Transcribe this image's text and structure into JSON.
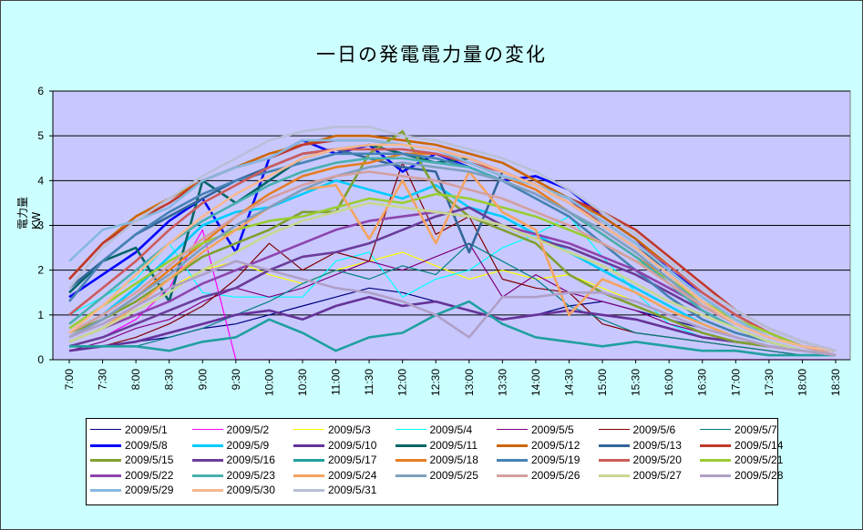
{
  "chart_data": {
    "type": "line",
    "title": "一日の発電電力量の変化",
    "ylabel": "電力量KW",
    "xlabel": "",
    "ylim": [
      0,
      6
    ],
    "yticks": [
      0,
      1,
      2,
      3,
      4,
      5,
      6
    ],
    "grid": true,
    "legend_position": "bottom",
    "categories": [
      "7:00",
      "7:30",
      "8:00",
      "8:30",
      "9:00",
      "9:30",
      "10:00",
      "10:30",
      "11:00",
      "11:30",
      "12:00",
      "12:30",
      "13:00",
      "13:30",
      "14:00",
      "14:30",
      "15:00",
      "15:30",
      "16:00",
      "16:30",
      "17:00",
      "17:30",
      "18:00",
      "18:30"
    ],
    "series": [
      {
        "name": "2009/5/1",
        "color": "#000080",
        "values": [
          0.3,
          0.3,
          0.4,
          0.5,
          0.7,
          0.8,
          1.0,
          1.2,
          1.4,
          1.6,
          1.5,
          1.3,
          1.1,
          0.9,
          1.0,
          1.2,
          1.3,
          1.1,
          0.9,
          0.7,
          0.5,
          0.3,
          0.2,
          0.1
        ]
      },
      {
        "name": "2009/5/2",
        "color": "#ff00ff",
        "values": [
          0.3,
          0.5,
          0.9,
          1.6,
          2.9,
          0,
          0,
          0,
          0,
          0,
          0,
          0,
          0,
          0,
          0,
          0,
          0,
          0,
          0,
          0,
          0,
          0,
          0,
          0
        ]
      },
      {
        "name": "2009/5/3",
        "color": "#ffff00",
        "values": [
          0.5,
          0.8,
          1.2,
          1.6,
          2.0,
          2.2,
          1.9,
          1.7,
          2.0,
          2.2,
          2.4,
          2.1,
          1.8,
          2.0,
          1.8,
          1.9,
          1.6,
          1.3,
          1.0,
          0.7,
          0.5,
          0.3,
          0.2,
          0.1
        ]
      },
      {
        "name": "2009/5/4",
        "color": "#00ffff",
        "values": [
          1.0,
          1.4,
          1.8,
          2.6,
          1.5,
          1.4,
          1.4,
          1.4,
          2.2,
          2.4,
          1.4,
          1.8,
          2.0,
          2.5,
          2.8,
          3.2,
          2.3,
          1.5,
          0.8,
          0.5,
          0.4,
          0.3,
          0.2,
          0.1
        ]
      },
      {
        "name": "2009/5/5",
        "color": "#800080",
        "values": [
          0.2,
          0.4,
          0.7,
          0.9,
          1.3,
          1.6,
          1.4,
          1.6,
          1.9,
          2.2,
          2.0,
          2.3,
          2.6,
          1.4,
          1.9,
          1.5,
          1.3,
          1.1,
          0.8,
          0.6,
          0.4,
          0.3,
          0.2,
          0.1
        ]
      },
      {
        "name": "2009/5/6",
        "color": "#800000",
        "values": [
          0.3,
          0.3,
          0.5,
          0.8,
          1.2,
          1.8,
          2.6,
          2.0,
          2.4,
          2.2,
          4.4,
          2.8,
          3.2,
          1.8,
          1.6,
          1.5,
          0.8,
          0.6,
          0.5,
          0.4,
          0.3,
          0.2,
          0.1,
          0.1
        ]
      },
      {
        "name": "2009/5/7",
        "color": "#008080",
        "values": [
          0.2,
          0.3,
          0.3,
          0.5,
          0.7,
          1.0,
          1.3,
          1.7,
          2.0,
          1.8,
          2.1,
          1.9,
          2.6,
          2.2,
          1.8,
          1.2,
          0.9,
          0.6,
          0.5,
          0.4,
          0.3,
          0.2,
          0.1,
          0.1
        ]
      },
      {
        "name": "2009/5/8",
        "color": "#0000ff",
        "values": [
          1.4,
          1.9,
          2.4,
          3.1,
          3.6,
          2.4,
          4.5,
          4.9,
          4.6,
          4.8,
          4.2,
          4.6,
          4.3,
          4.0,
          4.1,
          3.8,
          3.2,
          2.7,
          2.0,
          1.5,
          1.0,
          0.6,
          0.3,
          0.2
        ]
      },
      {
        "name": "2009/5/9",
        "color": "#00ccff",
        "values": [
          0.6,
          1.0,
          1.6,
          2.3,
          3.0,
          3.3,
          3.4,
          3.7,
          4.0,
          3.8,
          3.6,
          3.9,
          3.4,
          3.2,
          2.8,
          2.4,
          2.0,
          1.6,
          1.2,
          0.8,
          0.5,
          0.3,
          0.2,
          0.1
        ]
      },
      {
        "name": "2009/5/10",
        "color": "#663399",
        "values": [
          0.2,
          0.3,
          0.4,
          0.6,
          0.8,
          1.0,
          1.1,
          0.9,
          1.2,
          1.4,
          1.2,
          1.3,
          1.1,
          0.9,
          1.0,
          1.1,
          1.0,
          0.9,
          0.7,
          0.5,
          0.4,
          0.3,
          0.2,
          0.1
        ]
      },
      {
        "name": "2009/5/11",
        "color": "#006666",
        "values": [
          1.5,
          2.2,
          2.5,
          1.3,
          4.0,
          3.5,
          4.0,
          4.5,
          4.7,
          4.8,
          4.6,
          4.4,
          4.5,
          4.2,
          3.9,
          3.5,
          3.0,
          2.5,
          1.9,
          1.3,
          0.8,
          0.5,
          0.3,
          0.2
        ]
      },
      {
        "name": "2009/5/12",
        "color": "#cc6600",
        "values": [
          1.8,
          2.6,
          3.2,
          3.6,
          4.0,
          4.3,
          4.6,
          4.8,
          5.0,
          5.0,
          4.9,
          4.8,
          4.6,
          4.4,
          4.0,
          3.6,
          3.2,
          2.7,
          2.1,
          1.5,
          1.0,
          0.6,
          0.3,
          0.2
        ]
      },
      {
        "name": "2009/5/13",
        "color": "#336699",
        "values": [
          1.6,
          2.2,
          2.8,
          3.2,
          3.6,
          4.0,
          4.3,
          4.6,
          4.7,
          4.5,
          4.3,
          4.2,
          2.4,
          4.2,
          3.9,
          3.6,
          3.0,
          2.5,
          2.0,
          1.4,
          0.9,
          0.5,
          0.3,
          0.2
        ]
      },
      {
        "name": "2009/5/14",
        "color": "#c0392b",
        "values": [
          1.8,
          2.6,
          3.1,
          3.5,
          4.0,
          4.3,
          4.5,
          4.8,
          4.9,
          4.9,
          4.8,
          4.7,
          4.5,
          4.2,
          3.9,
          3.6,
          3.3,
          2.9,
          2.3,
          1.7,
          1.1,
          0.7,
          0.4,
          0.2
        ]
      },
      {
        "name": "2009/5/15",
        "color": "#80a030",
        "values": [
          0.6,
          0.9,
          1.3,
          1.8,
          2.3,
          2.6,
          2.9,
          3.3,
          3.3,
          4.6,
          5.1,
          3.8,
          3.2,
          2.9,
          2.6,
          1.9,
          1.5,
          1.2,
          0.9,
          0.6,
          0.4,
          0.3,
          0.2,
          0.1
        ]
      },
      {
        "name": "2009/5/16",
        "color": "#6a3d9a",
        "values": [
          0.3,
          0.5,
          0.8,
          1.1,
          1.4,
          1.6,
          2.0,
          2.3,
          2.4,
          2.6,
          2.9,
          3.2,
          3.4,
          3.0,
          2.7,
          2.5,
          2.2,
          1.9,
          1.5,
          1.1,
          0.7,
          0.4,
          0.2,
          0.1
        ]
      },
      {
        "name": "2009/5/17",
        "color": "#20a0a0",
        "values": [
          0.3,
          0.3,
          0.3,
          0.2,
          0.4,
          0.5,
          0.9,
          0.6,
          0.2,
          0.5,
          0.6,
          1.0,
          1.3,
          0.8,
          0.5,
          0.4,
          0.3,
          0.4,
          0.3,
          0.2,
          0.2,
          0.1,
          0.1,
          0.1
        ]
      },
      {
        "name": "2009/5/18",
        "color": "#e67e22",
        "values": [
          0.5,
          0.9,
          1.4,
          2.0,
          2.6,
          3.2,
          3.7,
          4.1,
          4.3,
          4.4,
          4.6,
          4.6,
          4.4,
          4.1,
          3.8,
          3.3,
          2.8,
          2.3,
          1.8,
          1.2,
          0.8,
          0.5,
          0.3,
          0.2
        ]
      },
      {
        "name": "2009/5/19",
        "color": "#4682b4",
        "values": [
          1.3,
          2.2,
          2.8,
          3.3,
          3.7,
          4.0,
          4.2,
          4.4,
          4.6,
          4.6,
          4.6,
          4.5,
          4.3,
          4.0,
          3.6,
          3.2,
          2.6,
          2.0,
          1.4,
          0.9,
          0.6,
          0.4,
          0.2,
          0.1
        ]
      },
      {
        "name": "2009/5/20",
        "color": "#cd5c5c",
        "values": [
          1.0,
          1.6,
          2.2,
          2.9,
          3.5,
          3.9,
          4.3,
          4.6,
          4.7,
          4.7,
          4.7,
          4.6,
          4.4,
          4.2,
          3.9,
          3.5,
          3.1,
          2.6,
          2.1,
          1.5,
          1.0,
          0.6,
          0.3,
          0.2
        ]
      },
      {
        "name": "2009/5/21",
        "color": "#9acd32",
        "values": [
          0.7,
          1.2,
          1.7,
          2.2,
          2.6,
          2.9,
          3.1,
          3.2,
          3.4,
          3.6,
          3.5,
          3.7,
          3.6,
          3.4,
          3.2,
          2.9,
          2.6,
          2.2,
          1.8,
          1.3,
          0.9,
          0.6,
          0.3,
          0.1
        ]
      },
      {
        "name": "2009/5/22",
        "color": "#8e44ad",
        "values": [
          0.4,
          0.7,
          1.0,
          1.3,
          1.7,
          2.0,
          2.3,
          2.6,
          2.9,
          3.1,
          3.2,
          3.3,
          3.2,
          3.0,
          2.8,
          2.6,
          2.3,
          2.0,
          1.6,
          1.2,
          0.8,
          0.5,
          0.3,
          0.1
        ]
      },
      {
        "name": "2009/5/23",
        "color": "#48b0b0",
        "values": [
          0.8,
          1.4,
          2.0,
          2.6,
          3.1,
          3.5,
          3.9,
          4.2,
          4.4,
          4.5,
          4.5,
          4.4,
          4.3,
          4.0,
          3.7,
          3.3,
          2.8,
          2.3,
          1.7,
          1.1,
          0.7,
          0.4,
          0.2,
          0.1
        ]
      },
      {
        "name": "2009/5/24",
        "color": "#f4a460",
        "values": [
          0.4,
          0.7,
          1.2,
          1.8,
          2.4,
          2.9,
          3.4,
          3.8,
          3.9,
          2.7,
          4.0,
          2.6,
          4.2,
          3.3,
          2.9,
          1.0,
          1.8,
          1.5,
          1.1,
          0.8,
          0.5,
          0.3,
          0.2,
          0.1
        ]
      },
      {
        "name": "2009/5/25",
        "color": "#7f9fbf",
        "values": [
          0.5,
          0.9,
          1.4,
          1.9,
          2.5,
          3.0,
          3.4,
          3.8,
          4.1,
          4.3,
          4.4,
          4.3,
          4.2,
          4.0,
          3.7,
          3.3,
          2.9,
          2.4,
          1.8,
          1.2,
          0.8,
          0.5,
          0.3,
          0.1
        ]
      },
      {
        "name": "2009/5/26",
        "color": "#d4a0a0",
        "values": [
          0.6,
          1.0,
          1.5,
          2.1,
          2.7,
          3.2,
          3.6,
          3.9,
          4.1,
          4.2,
          4.1,
          4.0,
          3.8,
          3.6,
          3.3,
          3.0,
          2.6,
          2.2,
          1.7,
          1.2,
          0.8,
          0.5,
          0.3,
          0.1
        ]
      },
      {
        "name": "2009/5/27",
        "color": "#c8d890",
        "values": [
          0.4,
          0.7,
          1.1,
          1.5,
          2.0,
          2.4,
          2.8,
          3.1,
          3.3,
          3.5,
          3.4,
          3.3,
          3.2,
          3.0,
          2.7,
          2.4,
          2.1,
          1.7,
          1.3,
          1.0,
          0.7,
          0.4,
          0.2,
          0.1
        ]
      },
      {
        "name": "2009/5/28",
        "color": "#b0a0c8",
        "values": [
          0.5,
          0.8,
          1.2,
          1.6,
          1.9,
          2.2,
          2.0,
          1.8,
          1.6,
          1.5,
          1.3,
          1.0,
          0.5,
          1.4,
          1.4,
          1.5,
          1.5,
          1.3,
          1.0,
          0.7,
          0.5,
          0.3,
          0.2,
          0.1
        ]
      },
      {
        "name": "2009/5/29",
        "color": "#87b8e0",
        "values": [
          2.2,
          2.9,
          3.1,
          3.4,
          4.0,
          4.3,
          4.5,
          4.9,
          4.9,
          4.9,
          4.8,
          4.7,
          4.4,
          4.1,
          3.9,
          3.6,
          3.1,
          2.6,
          2.0,
          1.4,
          0.9,
          0.5,
          0.3,
          0.2
        ]
      },
      {
        "name": "2009/5/30",
        "color": "#f8b890",
        "values": [
          0.6,
          1.2,
          1.9,
          2.6,
          3.2,
          3.7,
          4.1,
          4.5,
          4.7,
          4.8,
          4.8,
          4.7,
          4.5,
          4.2,
          3.9,
          3.5,
          3.0,
          2.5,
          1.9,
          1.3,
          0.8,
          0.5,
          0.3,
          0.2
        ]
      },
      {
        "name": "2009/5/31",
        "color": "#b8c0d8",
        "values": [
          1.6,
          2.5,
          3.1,
          3.6,
          4.1,
          4.5,
          4.9,
          5.1,
          5.2,
          5.2,
          5.0,
          4.9,
          4.7,
          4.5,
          4.2,
          3.8,
          3.3,
          2.8,
          2.2,
          1.6,
          1.1,
          0.7,
          0.4,
          0.2
        ]
      }
    ]
  }
}
